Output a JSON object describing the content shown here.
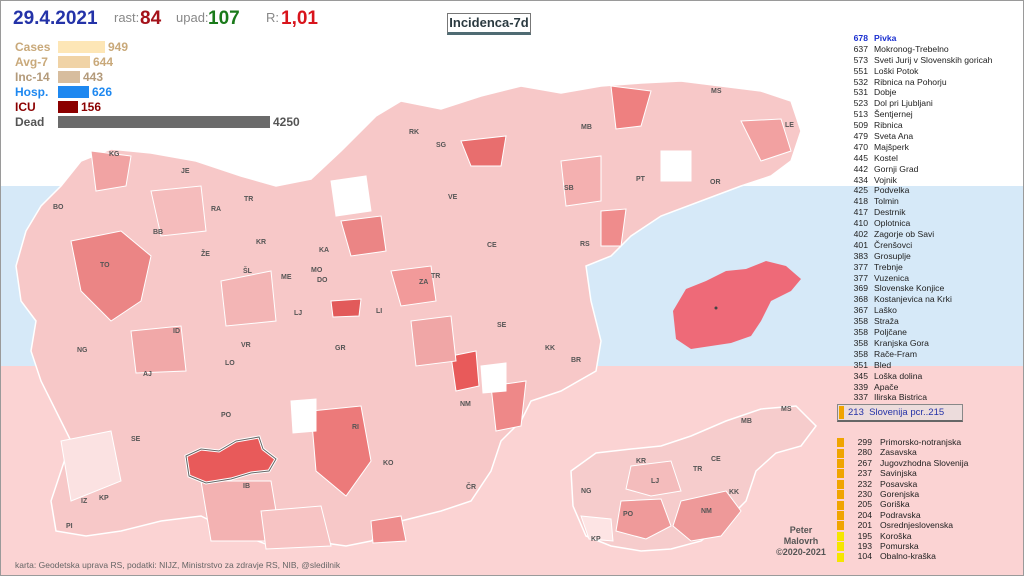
{
  "header": {
    "date": "29.4.2021",
    "rast_label": "rast:",
    "rast_value": "84",
    "upad_label": "upad:",
    "upad_value": "107",
    "r_label": "R:",
    "r_value": "1,01",
    "map_title": "Incidenca-7d"
  },
  "stats": [
    {
      "label": "Cases",
      "value": "949",
      "color": "#fde6b6",
      "label_color": "#c9a97a"
    },
    {
      "label": "Avg-7",
      "value": "644",
      "color": "#f0d3a6",
      "label_color": "#c9a97a"
    },
    {
      "label": "Inc-14",
      "value": "443",
      "color": "#d7bd9e",
      "label_color": "#b39a7a"
    },
    {
      "label": "Hosp.",
      "value": "626",
      "color": "#1e88f0",
      "label_color": "#1e88f0"
    },
    {
      "label": "ICU",
      "value": "156",
      "color": "#8b0000",
      "label_color": "#8b0000"
    },
    {
      "label": "Dead",
      "value": "4250",
      "color": "#6b6b6b",
      "label_color": "#555555"
    }
  ],
  "municipalities": [
    {
      "n": "678",
      "name": "Pivka"
    },
    {
      "n": "637",
      "name": "Mokronog-Trebelno"
    },
    {
      "n": "573",
      "name": "Sveti Jurij v Slovenskih goricah"
    },
    {
      "n": "551",
      "name": "Loški Potok"
    },
    {
      "n": "532",
      "name": "Ribnica na Pohorju"
    },
    {
      "n": "531",
      "name": "Dobje"
    },
    {
      "n": "523",
      "name": "Dol pri Ljubljani"
    },
    {
      "n": "513",
      "name": "Šentjernej"
    },
    {
      "n": "509",
      "name": "Ribnica"
    },
    {
      "n": "479",
      "name": "Sveta Ana"
    },
    {
      "n": "470",
      "name": "Majšperk"
    },
    {
      "n": "445",
      "name": "Kostel"
    },
    {
      "n": "442",
      "name": "Gornji Grad"
    },
    {
      "n": "434",
      "name": "Vojnik"
    },
    {
      "n": "425",
      "name": "Podvelka"
    },
    {
      "n": "418",
      "name": "Tolmin"
    },
    {
      "n": "417",
      "name": "Destrnik"
    },
    {
      "n": "410",
      "name": "Oplotnica"
    },
    {
      "n": "402",
      "name": "Zagorje ob Savi"
    },
    {
      "n": "401",
      "name": "Črenšovci"
    },
    {
      "n": "383",
      "name": "Grosuplje"
    },
    {
      "n": "377",
      "name": "Trebnje"
    },
    {
      "n": "377",
      "name": "Vuzenica"
    },
    {
      "n": "369",
      "name": "Slovenske Konjice"
    },
    {
      "n": "368",
      "name": "Kostanjevica na Krki"
    },
    {
      "n": "367",
      "name": "Laško"
    },
    {
      "n": "358",
      "name": "Straža"
    },
    {
      "n": "358",
      "name": "Poljčane"
    },
    {
      "n": "358",
      "name": "Kranjska Gora"
    },
    {
      "n": "358",
      "name": "Rače-Fram"
    },
    {
      "n": "351",
      "name": "Bled"
    },
    {
      "n": "345",
      "name": "Loška dolina"
    },
    {
      "n": "339",
      "name": "Apače"
    },
    {
      "n": "337",
      "name": "Ilirska Bistrica"
    }
  ],
  "slovenia": {
    "n": "213",
    "label": "Slovenija pcr..215"
  },
  "regions": [
    {
      "n": "299",
      "name": "Primorsko-notranjska",
      "color": "#f0a400"
    },
    {
      "n": "280",
      "name": "Zasavska",
      "color": "#f0a400"
    },
    {
      "n": "267",
      "name": "Jugovzhodna Slovenija",
      "color": "#f0a400"
    },
    {
      "n": "237",
      "name": "Savinjska",
      "color": "#f0a400"
    },
    {
      "n": "232",
      "name": "Posavska",
      "color": "#f0a400"
    },
    {
      "n": "230",
      "name": "Gorenjska",
      "color": "#f0a400"
    },
    {
      "n": "205",
      "name": "Goriška",
      "color": "#f0a400"
    },
    {
      "n": "204",
      "name": "Podravska",
      "color": "#f0a400"
    },
    {
      "n": "201",
      "name": "Osrednjeslovenska",
      "color": "#f0a400"
    },
    {
      "n": "195",
      "name": "Koroška",
      "color": "#f5e600"
    },
    {
      "n": "193",
      "name": "Pomurska",
      "color": "#f5e600"
    },
    {
      "n": "104",
      "name": "Obalno-kraška",
      "color": "#f5e600"
    }
  ],
  "author": {
    "line1": "Peter",
    "line2": "Malovrh",
    "line3": "©2020-2021"
  },
  "credits": "karta: Geodetska uprava RS,  podatki: NIJZ, Ministrstvo za zdravje RS, NIB, @sledilnik",
  "map_labels": [
    "KG",
    "JE",
    "BO",
    "RA",
    "TR",
    "BB",
    "ŽE",
    "KR",
    "KA",
    "ŠL",
    "ME",
    "MO",
    "DO",
    "TO",
    "LJ",
    "LI",
    "ZA",
    "TR",
    "ID",
    "VR",
    "LO",
    "NG",
    "AJ",
    "GR",
    "PO",
    "RI",
    "SE",
    "KO",
    "IB",
    "KP",
    "IZ",
    "PI",
    "ČR",
    "NM",
    "KK",
    "BR",
    "SE",
    "CE",
    "RS",
    "VE",
    "SG",
    "RK",
    "MB",
    "SB",
    "PT",
    "OR",
    "MS",
    "LE"
  ],
  "region_labels": [
    "MS",
    "MB",
    "KR",
    "CE",
    "TR",
    "KK",
    "NG",
    "LJ",
    "PO",
    "NM",
    "KP"
  ]
}
